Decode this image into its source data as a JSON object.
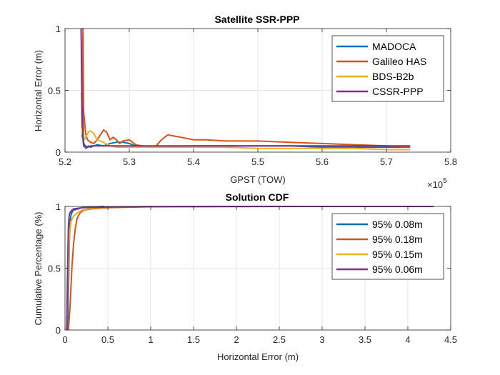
{
  "chart_data": [
    {
      "type": "line",
      "title": "Satellite SSR-PPP",
      "xlabel": "GPST (TOW)",
      "ylabel": "Horizontal Error (m)",
      "x_multiplier_label": "×10",
      "x_multiplier_exp": "5",
      "xlim": [
        5.2,
        5.8
      ],
      "ylim": [
        0,
        1
      ],
      "xticks": [
        "5.2",
        "5.3",
        "5.4",
        "5.5",
        "5.6",
        "5.7",
        "5.8"
      ],
      "xtick_values": [
        5.2,
        5.3,
        5.4,
        5.5,
        5.6,
        5.7,
        5.8
      ],
      "yticks": [
        "0",
        "0.5",
        "1"
      ],
      "ytick_values": [
        0,
        0.5,
        1
      ],
      "grid": true,
      "legend_position": "top-right",
      "series": [
        {
          "name": "MADOCA",
          "color": "#0072BD",
          "x": [
            5.226,
            5.2265,
            5.227,
            5.2275,
            5.228,
            5.229,
            5.231,
            5.233,
            5.236,
            5.24,
            5.25,
            5.26,
            5.27,
            5.28,
            5.29,
            5.3,
            5.31,
            5.32,
            5.35,
            5.4,
            5.45,
            5.5,
            5.55,
            5.6,
            5.65,
            5.7,
            5.737
          ],
          "y": [
            0.75,
            0.2,
            0.12,
            0.55,
            0.1,
            0.05,
            0.04,
            0.03,
            0.05,
            0.04,
            0.06,
            0.05,
            0.07,
            0.08,
            0.08,
            0.07,
            0.05,
            0.05,
            0.04,
            0.05,
            0.05,
            0.05,
            0.05,
            0.04,
            0.04,
            0.04,
            0.04
          ]
        },
        {
          "name": "Galileo HAS",
          "color": "#D95319",
          "x": [
            5.226,
            5.2265,
            5.227,
            5.2275,
            5.228,
            5.2285,
            5.229,
            5.23,
            5.232,
            5.235,
            5.24,
            5.245,
            5.25,
            5.255,
            5.26,
            5.265,
            5.27,
            5.275,
            5.28,
            5.285,
            5.29,
            5.3,
            5.31,
            5.32,
            5.33,
            5.34,
            5.35,
            5.36,
            5.37,
            5.38,
            5.4,
            5.42,
            5.45,
            5.5,
            5.55,
            5.6,
            5.65,
            5.7,
            5.737
          ],
          "y": [
            0.65,
            0.25,
            0.18,
            0.8,
            1.0,
            0.6,
            0.32,
            0.28,
            0.15,
            0.1,
            0.08,
            0.07,
            0.1,
            0.14,
            0.18,
            0.16,
            0.1,
            0.12,
            0.1,
            0.07,
            0.09,
            0.1,
            0.06,
            0.05,
            0.04,
            0.04,
            0.1,
            0.14,
            0.13,
            0.12,
            0.1,
            0.1,
            0.09,
            0.09,
            0.08,
            0.07,
            0.06,
            0.05,
            0.04
          ]
        },
        {
          "name": "BDS-B2b",
          "color": "#EDB120",
          "x": [
            5.2255,
            5.226,
            5.2265,
            5.227,
            5.228,
            5.229,
            5.23,
            5.232,
            5.235,
            5.238,
            5.24,
            5.245,
            5.25,
            5.26,
            5.27,
            5.28,
            5.3,
            5.35,
            5.4,
            5.45,
            5.5,
            5.55,
            5.6,
            5.65,
            5.7,
            5.737
          ],
          "y": [
            0.48,
            0.4,
            0.15,
            0.2,
            0.3,
            0.12,
            0.1,
            0.12,
            0.15,
            0.17,
            0.17,
            0.15,
            0.1,
            0.08,
            0.05,
            0.04,
            0.04,
            0.04,
            0.04,
            0.04,
            0.03,
            0.03,
            0.03,
            0.03,
            0.02,
            0.02
          ]
        },
        {
          "name": "CSSR-PPP",
          "color": "#7E2F8E",
          "x": [
            5.225,
            5.2255,
            5.226,
            5.2265,
            5.227,
            5.2275,
            5.228,
            5.229,
            5.23,
            5.232,
            5.235,
            5.24,
            5.25,
            5.26,
            5.28,
            5.3,
            5.35,
            5.4,
            5.45,
            5.5,
            5.55,
            5.6,
            5.65,
            5.7,
            5.737
          ],
          "y": [
            1.0,
            0.78,
            0.55,
            0.3,
            0.2,
            0.35,
            0.12,
            0.08,
            0.06,
            0.05,
            0.04,
            0.05,
            0.05,
            0.05,
            0.05,
            0.05,
            0.05,
            0.05,
            0.05,
            0.05,
            0.05,
            0.05,
            0.05,
            0.05,
            0.05
          ]
        }
      ]
    },
    {
      "type": "line",
      "title": "Solution CDF",
      "xlabel": "Horizontal Error (m)",
      "ylabel": "Cumulative Percentage (%)",
      "xlim": [
        0,
        4.5
      ],
      "ylim": [
        0,
        1
      ],
      "xticks": [
        "0",
        "0.5",
        "1",
        "1.5",
        "2",
        "2.5",
        "3",
        "3.5",
        "4",
        "4.5"
      ],
      "xtick_values": [
        0,
        0.5,
        1,
        1.5,
        2,
        2.5,
        3,
        3.5,
        4,
        4.5
      ],
      "yticks": [
        "0",
        "0.5",
        "1"
      ],
      "ytick_values": [
        0,
        0.5,
        1
      ],
      "grid": true,
      "legend_position": "top-right",
      "series": [
        {
          "name": "95% 0.08m",
          "color": "#0072BD",
          "x": [
            0.03,
            0.04,
            0.05,
            0.06,
            0.07,
            0.08,
            0.1,
            0.15,
            0.2,
            0.3,
            0.46
          ],
          "y": [
            0,
            0.3,
            0.7,
            0.88,
            0.93,
            0.95,
            0.97,
            0.98,
            0.99,
            0.995,
            1.0
          ]
        },
        {
          "name": "95% 0.18m",
          "color": "#D95319",
          "x": [
            0.04,
            0.06,
            0.08,
            0.1,
            0.12,
            0.14,
            0.16,
            0.18,
            0.22,
            0.3,
            0.5,
            1.0,
            2.0,
            3.0,
            4.3
          ],
          "y": [
            0,
            0.2,
            0.5,
            0.7,
            0.82,
            0.9,
            0.93,
            0.95,
            0.97,
            0.98,
            0.99,
            0.997,
            0.999,
            1.0,
            1.0
          ]
        },
        {
          "name": "95% 0.15m",
          "color": "#EDB120",
          "x": [
            0.02,
            0.03,
            0.05,
            0.07,
            0.1,
            0.15,
            0.2,
            0.3,
            0.5,
            0.8,
            1.0
          ],
          "y": [
            0,
            0.3,
            0.75,
            0.88,
            0.92,
            0.95,
            0.97,
            0.985,
            0.995,
            0.999,
            1.0
          ]
        },
        {
          "name": "95% 0.06m",
          "color": "#7E2F8E",
          "x": [
            0.02,
            0.03,
            0.04,
            0.05,
            0.06,
            0.08,
            0.1,
            0.2,
            0.5,
            1.0,
            2.0,
            3.0,
            4.0,
            4.3
          ],
          "y": [
            0,
            0.5,
            0.85,
            0.93,
            0.95,
            0.97,
            0.98,
            0.99,
            0.995,
            0.999,
            1.0,
            1.0,
            1.0,
            1.0
          ]
        }
      ]
    }
  ]
}
